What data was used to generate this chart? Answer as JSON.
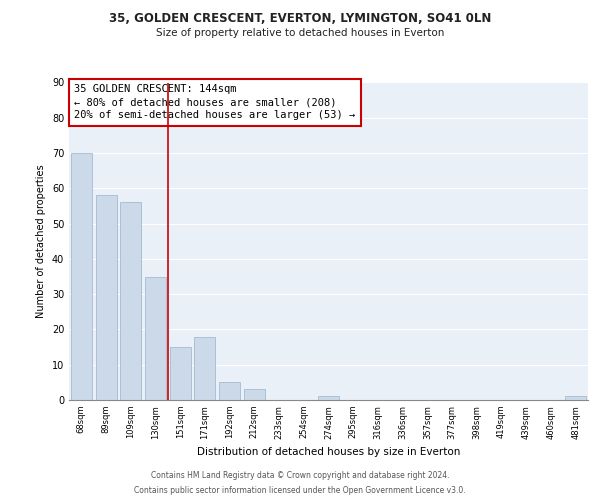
{
  "title1": "35, GOLDEN CRESCENT, EVERTON, LYMINGTON, SO41 0LN",
  "title2": "Size of property relative to detached houses in Everton",
  "xlabel": "Distribution of detached houses by size in Everton",
  "ylabel": "Number of detached properties",
  "bar_labels": [
    "68sqm",
    "89sqm",
    "109sqm",
    "130sqm",
    "151sqm",
    "171sqm",
    "192sqm",
    "212sqm",
    "233sqm",
    "254sqm",
    "274sqm",
    "295sqm",
    "316sqm",
    "336sqm",
    "357sqm",
    "377sqm",
    "398sqm",
    "419sqm",
    "439sqm",
    "460sqm",
    "481sqm"
  ],
  "bar_values": [
    70,
    58,
    56,
    35,
    15,
    18,
    5,
    3,
    0,
    0,
    1,
    0,
    0,
    0,
    0,
    0,
    0,
    0,
    0,
    0,
    1
  ],
  "bar_color": "#ccd9e8",
  "bar_edge_color": "#99b3cc",
  "vline_color": "#cc0000",
  "annotation_title": "35 GOLDEN CRESCENT: 144sqm",
  "annotation_line1": "← 80% of detached houses are smaller (208)",
  "annotation_line2": "20% of semi-detached houses are larger (53) →",
  "annotation_box_facecolor": "#ffffff",
  "annotation_box_edgecolor": "#cc0000",
  "ylim": [
    0,
    90
  ],
  "yticks": [
    0,
    10,
    20,
    30,
    40,
    50,
    60,
    70,
    80,
    90
  ],
  "footnote1": "Contains HM Land Registry data © Crown copyright and database right 2024.",
  "footnote2": "Contains public sector information licensed under the Open Government Licence v3.0.",
  "bg_color": "#eaf0f8",
  "grid_color": "#ffffff",
  "title1_fontsize": 8.5,
  "title2_fontsize": 7.5,
  "annotation_fontsize": 7.5,
  "ylabel_fontsize": 7.0,
  "xlabel_fontsize": 7.5,
  "ytick_fontsize": 7.0,
  "xtick_fontsize": 6.0,
  "footnote_fontsize": 5.5
}
